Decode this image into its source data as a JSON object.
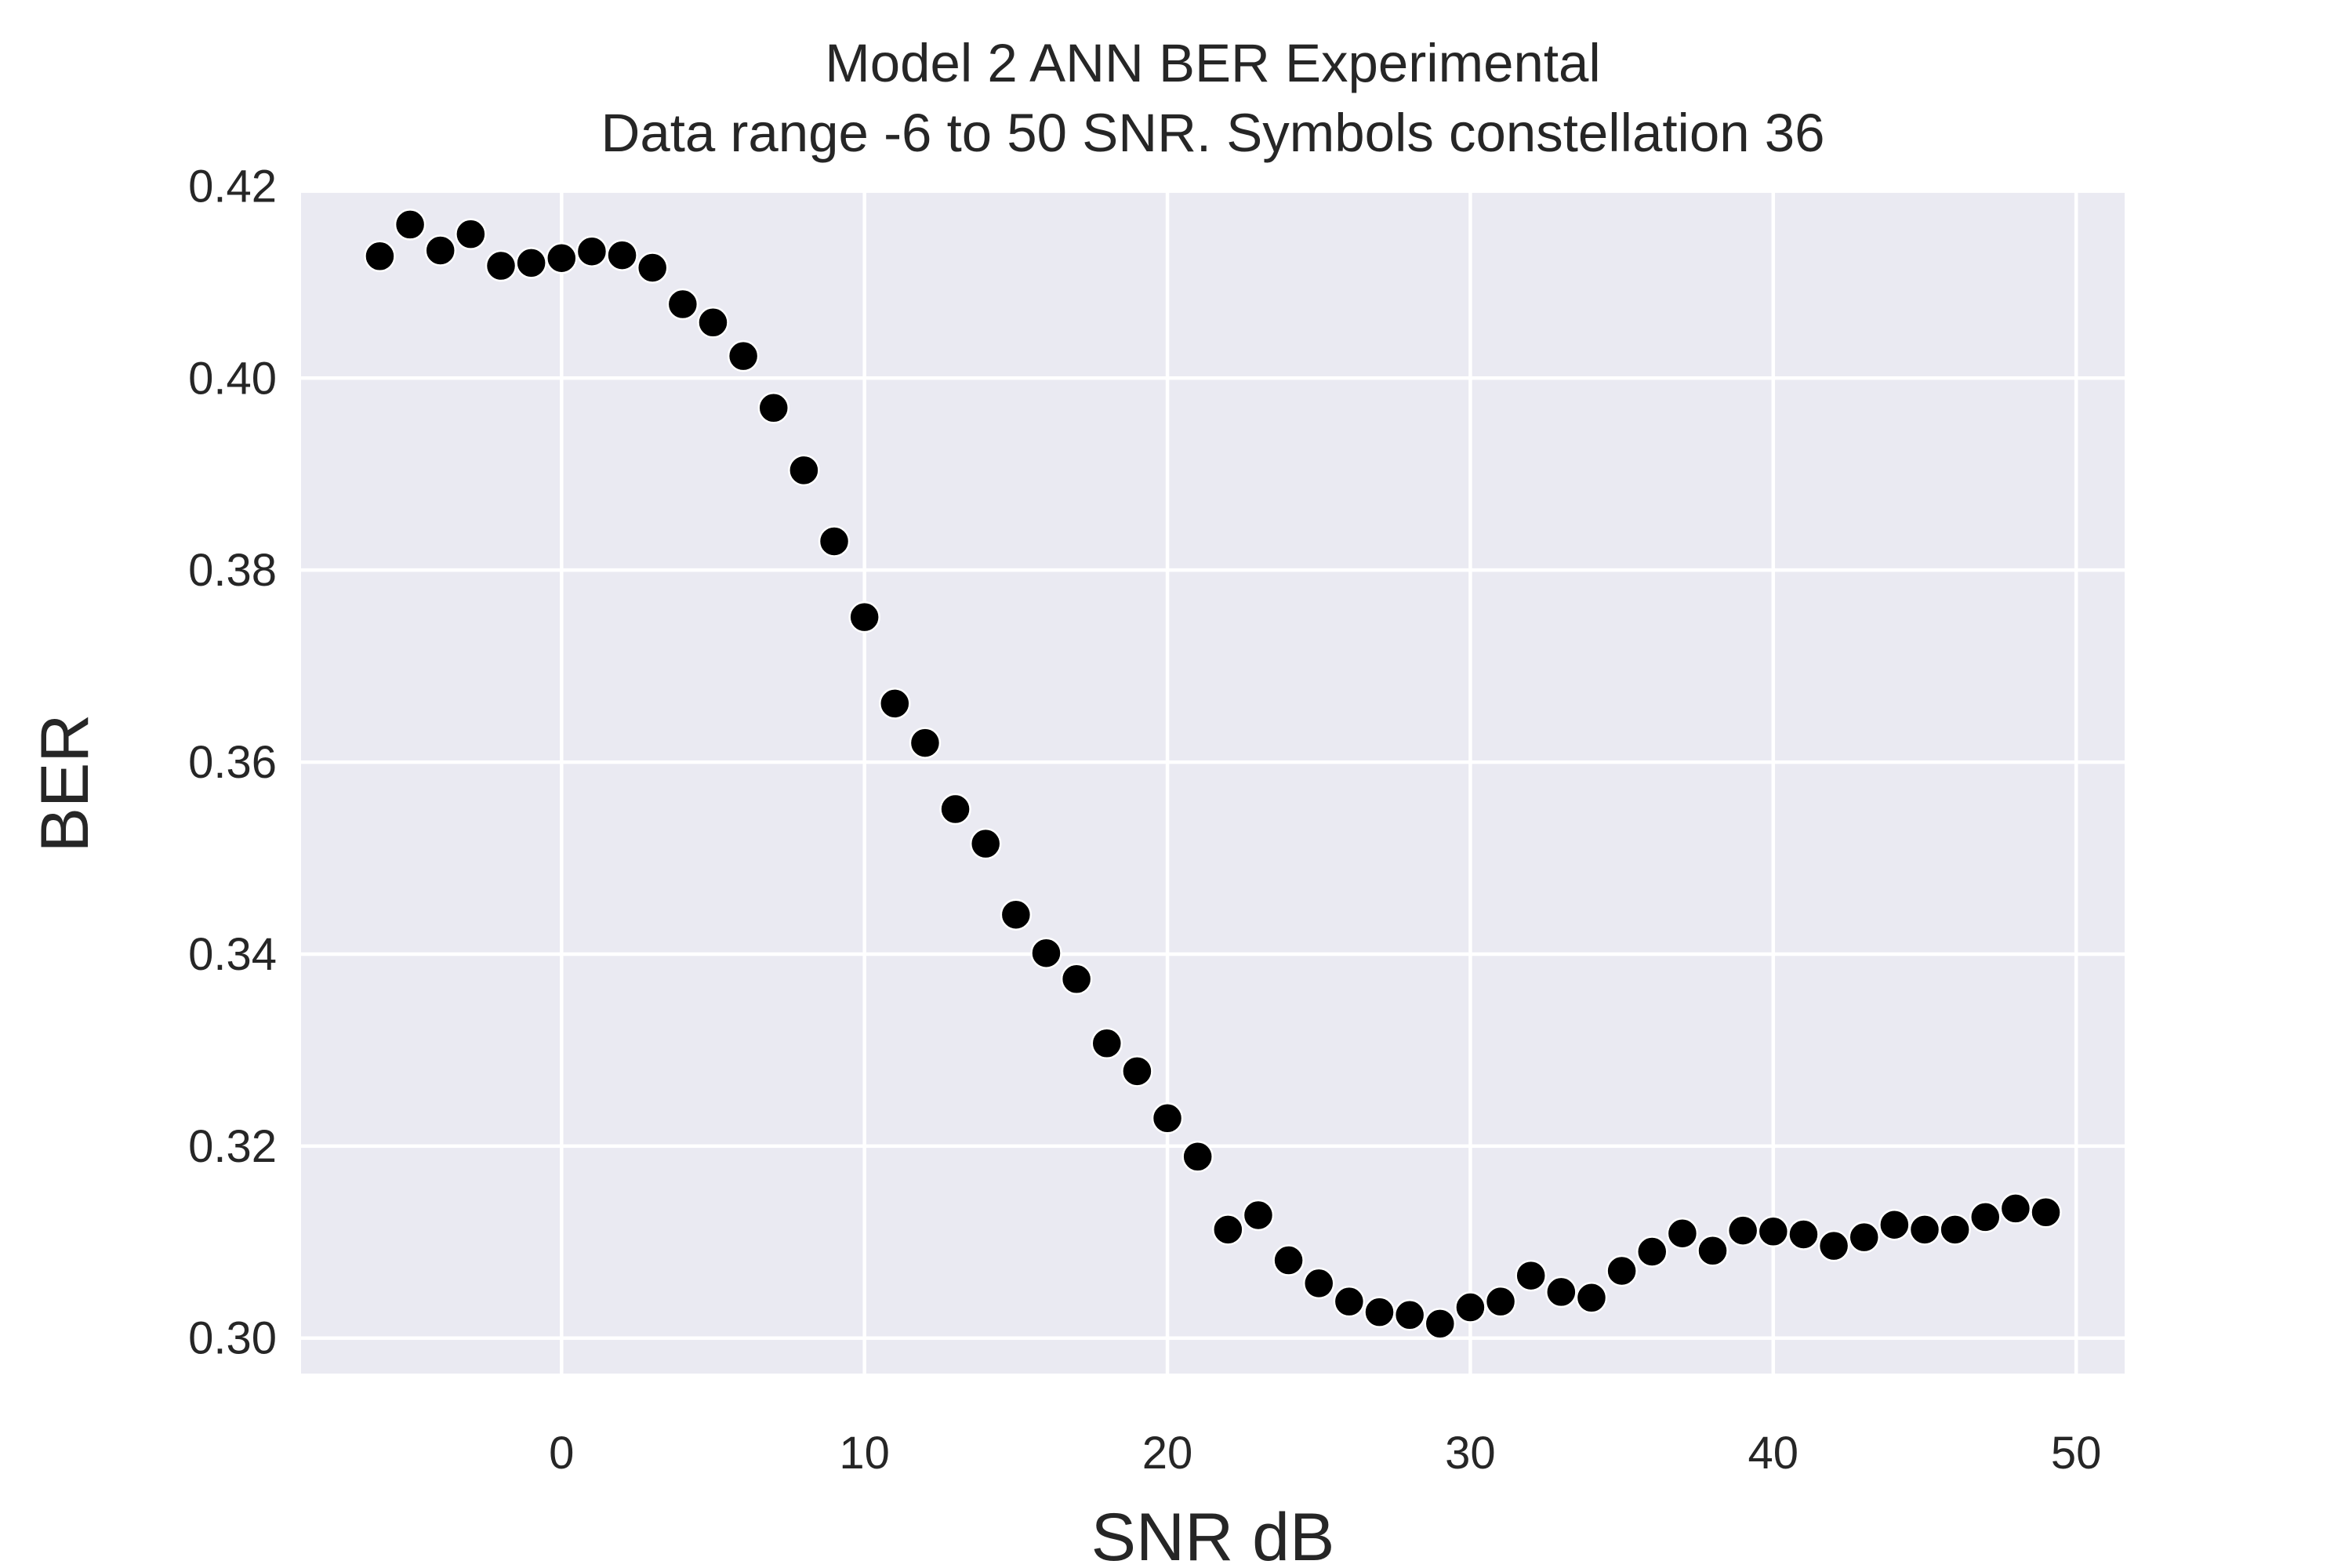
{
  "chart_data": {
    "type": "scatter",
    "title": "Model 2 ANN BER Experimental",
    "subtitle": "Data range -6 to 50 SNR. Symbols constellation 36",
    "xlabel": "SNR dB",
    "ylabel": "BER",
    "xlim": [
      -8.6,
      51.6
    ],
    "ylim": [
      0.2963,
      0.4193
    ],
    "xticks": [
      0,
      10,
      20,
      30,
      40,
      50
    ],
    "yticks": [
      0.3,
      0.32,
      0.34,
      0.36,
      0.38,
      0.4,
      0.42
    ],
    "xtick_labels": [
      "0",
      "10",
      "20",
      "30",
      "40",
      "50"
    ],
    "ytick_labels": [
      "0.30",
      "0.32",
      "0.34",
      "0.36",
      "0.38",
      "0.40",
      "0.42"
    ],
    "grid": true,
    "legend": "none",
    "colors": {
      "background": "#eaeaf2",
      "grid": "#ffffff",
      "marker": "#000000",
      "marker_edge": "#ffffff",
      "text": "#262626"
    },
    "series": [
      {
        "name": "BER",
        "x": [
          -6,
          -5,
          -4,
          -3,
          -2,
          -1,
          0,
          1,
          2,
          3,
          4,
          5,
          6,
          7,
          8,
          9,
          10,
          11,
          12,
          13,
          14,
          15,
          16,
          17,
          18,
          19,
          20,
          21,
          22,
          23,
          24,
          25,
          26,
          27,
          28,
          29,
          30,
          31,
          32,
          33,
          34,
          35,
          36,
          37,
          38,
          39,
          40,
          41,
          42,
          43,
          44,
          45,
          46,
          47,
          48,
          49
        ],
        "y": [
          0.4127,
          0.416,
          0.4133,
          0.415,
          0.4117,
          0.412,
          0.4125,
          0.4132,
          0.4128,
          0.4115,
          0.4077,
          0.4058,
          0.4023,
          0.3969,
          0.3904,
          0.383,
          0.3751,
          0.3661,
          0.362,
          0.3551,
          0.3515,
          0.3441,
          0.3401,
          0.3374,
          0.3307,
          0.3278,
          0.3229,
          0.3189,
          0.3113,
          0.3128,
          0.3081,
          0.3057,
          0.3038,
          0.3027,
          0.3024,
          0.3015,
          0.3032,
          0.3038,
          0.3065,
          0.3048,
          0.3042,
          0.307,
          0.309,
          0.3109,
          0.3091,
          0.3112,
          0.3111,
          0.3108,
          0.3096,
          0.3105,
          0.3118,
          0.3113,
          0.3113,
          0.3126,
          0.3135,
          0.3131
        ]
      }
    ]
  }
}
